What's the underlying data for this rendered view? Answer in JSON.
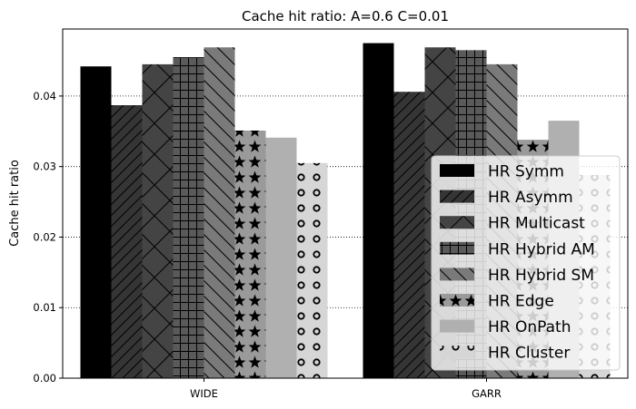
{
  "chart_data": {
    "type": "bar",
    "title": "Cache hit ratio: A=0.6 C=0.01",
    "xlabel": "",
    "ylabel": "Cache hit ratio",
    "categories": [
      "WIDE",
      "GARR"
    ],
    "ylim": [
      0,
      0.0495
    ],
    "yticks": [
      0.0,
      0.01,
      0.02,
      0.03,
      0.04
    ],
    "ytick_labels": [
      "0.00",
      "0.01",
      "0.02",
      "0.03",
      "0.04"
    ],
    "grid": "y-dotted",
    "legend_position": "lower-right",
    "series": [
      {
        "name": "HR Symm",
        "values": [
          0.0442,
          0.0475
        ],
        "fill": "#000000",
        "hatch": "none"
      },
      {
        "name": "HR Asymm",
        "values": [
          0.0387,
          0.0406
        ],
        "fill": "#353535",
        "hatch": "diag-up"
      },
      {
        "name": "HR Multicast",
        "values": [
          0.0445,
          0.0469
        ],
        "fill": "#444444",
        "hatch": "cross-diag"
      },
      {
        "name": "HR Hybrid AM",
        "values": [
          0.0455,
          0.0465
        ],
        "fill": "#5a5a5a",
        "hatch": "grid"
      },
      {
        "name": "HR Hybrid SM",
        "values": [
          0.0469,
          0.0445
        ],
        "fill": "#7a7a7a",
        "hatch": "diag-down"
      },
      {
        "name": "HR Edge",
        "values": [
          0.0351,
          0.0338
        ],
        "fill": "#9a9a9a",
        "hatch": "stars"
      },
      {
        "name": "HR OnPath",
        "values": [
          0.0341,
          0.0365
        ],
        "fill": "#b0b0b0",
        "hatch": "none"
      },
      {
        "name": "HR Cluster",
        "values": [
          0.0305,
          0.0288
        ],
        "fill": "#d6d6d6",
        "hatch": "circles"
      }
    ]
  }
}
